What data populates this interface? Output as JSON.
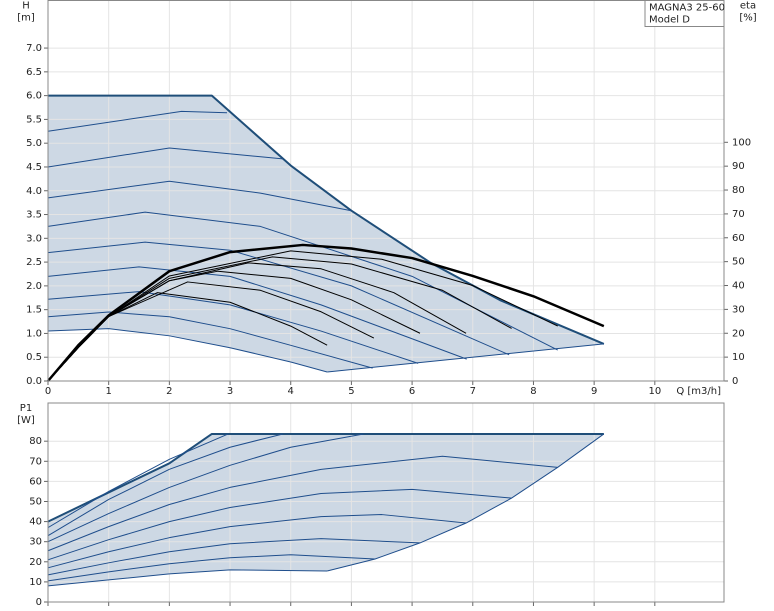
{
  "chart_data": [
    {
      "type": "line",
      "ylabel": [
        "H",
        "[m]"
      ],
      "y2label": [
        "eta",
        "[%]"
      ],
      "xlabel": "Q [m3/h]",
      "annotations": [
        "MAGNA3 25-60",
        "Model D"
      ],
      "xlim": [
        0,
        11.14
      ],
      "ylim": [
        0,
        8
      ],
      "y2lim": [
        0,
        159.4
      ],
      "xticks": [
        0,
        1,
        2,
        3,
        4,
        5,
        6,
        7,
        8,
        9,
        10
      ],
      "yticks": [
        {
          "value": 0,
          "label": "0.0"
        },
        0.5,
        {
          "value": 1,
          "label": "1.0"
        },
        1.5,
        {
          "value": 2,
          "label": "2.0"
        },
        2.5,
        {
          "value": 3,
          "label": "3.0"
        },
        3.5,
        {
          "value": 4,
          "label": "4.0"
        },
        4.5,
        {
          "value": 5,
          "label": "5.0"
        },
        5.5,
        {
          "value": 6,
          "label": "6.0"
        },
        6.5,
        {
          "value": 7,
          "label": "7.0"
        }
      ],
      "y2ticks": [
        0,
        10,
        20,
        30,
        40,
        50,
        60,
        70,
        80,
        90,
        100
      ],
      "show_xtick_labels": true,
      "grid": true,
      "region": {
        "color": "#cdd8e4",
        "x": [
          0,
          2.7,
          4,
          5,
          6.3,
          7.45,
          9.16,
          4.6,
          4,
          3,
          2,
          1,
          0
        ],
        "values": [
          6,
          6,
          4.53,
          3.58,
          2.49,
          1.7,
          0.78,
          0.19,
          0.4,
          0.7,
          0.95,
          1.1,
          1.05
        ]
      },
      "series": [
        {
          "color": "#1f4e79",
          "line_width": 2,
          "x": [
            0,
            2.7,
            4,
            5,
            6.3,
            7.45,
            9.16
          ],
          "values": [
            6,
            6,
            4.53,
            3.58,
            2.49,
            1.7,
            0.78
          ]
        },
        {
          "color": "#1f4e8c",
          "line_width": 1,
          "x": [
            4.6,
            9.16
          ],
          "values": [
            0.19,
            0.78
          ]
        },
        {
          "color": "#1f4e8c",
          "line_width": 1,
          "x": [
            0,
            1,
            2,
            3,
            4,
            4.6
          ],
          "values": [
            1.05,
            1.1,
            0.95,
            0.7,
            0.4,
            0.19
          ]
        },
        {
          "color": "#1f4e8c",
          "line_width": 1,
          "x": [
            0,
            1,
            2,
            3,
            4,
            5.35
          ],
          "values": [
            1.35,
            1.45,
            1.35,
            1.1,
            0.75,
            0.27
          ]
        },
        {
          "color": "#1f4e8c",
          "line_width": 1,
          "x": [
            0,
            1.5,
            3,
            4.5,
            6.1
          ],
          "values": [
            1.72,
            1.88,
            1.6,
            1.05,
            0.37
          ]
        },
        {
          "color": "#1f4e8c",
          "line_width": 1,
          "x": [
            0,
            1.5,
            3,
            4.5,
            6.9
          ],
          "values": [
            2.2,
            2.4,
            2.2,
            1.6,
            0.46
          ]
        },
        {
          "color": "#1f4e8c",
          "line_width": 1,
          "x": [
            0,
            1.6,
            3,
            5,
            7.6
          ],
          "values": [
            2.7,
            2.92,
            2.75,
            2.0,
            0.55
          ]
        },
        {
          "color": "#1f4e8c",
          "line_width": 1,
          "x": [
            0,
            1.6,
            3.5,
            6,
            8.4
          ],
          "values": [
            3.25,
            3.55,
            3.25,
            2.2,
            0.65
          ]
        },
        {
          "color": "#1f4e8c",
          "line_width": 1,
          "x": [
            0,
            2,
            3.5,
            5
          ],
          "values": [
            3.85,
            4.2,
            3.95,
            3.58
          ]
        },
        {
          "color": "#1f4e8c",
          "line_width": 1,
          "x": [
            0,
            2,
            3.87
          ],
          "values": [
            4.5,
            4.9,
            4.67
          ]
        },
        {
          "color": "#1f4e8c",
          "line_width": 1,
          "x": [
            0,
            2.2,
            2.95
          ],
          "values": [
            5.25,
            5.67,
            5.64
          ]
        },
        {
          "color": "#000000",
          "line_width": 2.5,
          "axis": "y2",
          "x": [
            0,
            0.5,
            1,
            2,
            3,
            4.2,
            5,
            6,
            7,
            8,
            9.16
          ],
          "values": [
            0,
            15,
            27.5,
            46,
            54,
            57,
            55.5,
            51.5,
            44,
            35.5,
            23
          ]
        },
        {
          "color": "#000000",
          "line_width": 1,
          "axis": "y2",
          "x": [
            0,
            0.5,
            1,
            1.8,
            3,
            4,
            4.6
          ],
          "values": [
            0,
            14,
            27,
            37,
            33,
            23,
            15
          ]
        },
        {
          "color": "#000000",
          "line_width": 1,
          "axis": "y2",
          "x": [
            0,
            0.5,
            1,
            2.3,
            3.5,
            4.5,
            5.37
          ],
          "values": [
            0,
            14,
            27,
            41.5,
            38,
            29,
            18
          ]
        },
        {
          "color": "#000000",
          "line_width": 1,
          "axis": "y2",
          "x": [
            0,
            0.5,
            1,
            2,
            2.8,
            4,
            5,
            6.13
          ],
          "values": [
            0,
            14,
            27,
            42,
            46,
            43,
            34,
            20
          ]
        },
        {
          "color": "#000000",
          "line_width": 1,
          "axis": "y2",
          "x": [
            0,
            0.5,
            1,
            2,
            3.3,
            4.5,
            5.7,
            6.89
          ],
          "values": [
            0,
            14,
            27,
            42,
            49.5,
            47,
            37,
            20
          ]
        },
        {
          "color": "#000000",
          "line_width": 1,
          "axis": "y2",
          "x": [
            0,
            0.5,
            1,
            2,
            3.7,
            5,
            6.5,
            7.64
          ],
          "values": [
            0,
            14,
            27,
            43,
            52,
            49,
            38,
            22
          ]
        },
        {
          "color": "#000000",
          "line_width": 1,
          "axis": "y2",
          "x": [
            0,
            0.5,
            1,
            2,
            4,
            5.5,
            7,
            8.4
          ],
          "values": [
            0,
            14,
            27,
            44,
            54.5,
            51,
            40,
            23
          ]
        }
      ]
    },
    {
      "type": "line",
      "ylabel": [
        "P1",
        "[W]"
      ],
      "xlim": [
        0,
        11.14
      ],
      "ylim": [
        0,
        99
      ],
      "xticks": [
        0,
        1,
        2,
        3,
        4,
        5,
        6,
        7,
        8,
        9,
        10
      ],
      "yticks": [
        0,
        10,
        20,
        30,
        40,
        50,
        60,
        70,
        80
      ],
      "show_xtick_labels": false,
      "grid": true,
      "region": {
        "color": "#cdd8e4",
        "x": [
          0,
          1,
          2,
          2.7,
          9.16,
          8.4,
          7.64,
          6.89,
          6.13,
          5.39,
          4.6,
          3,
          2,
          1,
          0
        ],
        "values": [
          40,
          54.5,
          69,
          83.6,
          83.6,
          67,
          51.7,
          39.3,
          29.4,
          21.4,
          15.4,
          16,
          14,
          11,
          8
        ]
      },
      "series": [
        {
          "color": "#1f4e79",
          "line_width": 2,
          "x": [
            0,
            1,
            2,
            2.7,
            9.16
          ],
          "values": [
            40,
            54.5,
            69,
            83.6,
            83.6
          ]
        },
        {
          "color": "#1f4e8c",
          "line_width": 1,
          "x": [
            9.16,
            8.4,
            7.64,
            6.89,
            6.13,
            5.39,
            4.6
          ],
          "values": [
            83.6,
            67,
            51.7,
            39.3,
            29.4,
            21.4,
            15.4
          ]
        },
        {
          "color": "#1f4e8c",
          "line_width": 1,
          "x": [
            0,
            1,
            2,
            3,
            4.6
          ],
          "values": [
            8,
            11,
            14,
            16,
            15.4
          ]
        },
        {
          "color": "#1f4e8c",
          "line_width": 1,
          "x": [
            0,
            1,
            2,
            3,
            4,
            5.39
          ],
          "values": [
            10.5,
            15,
            19,
            22,
            23.5,
            21.4
          ]
        },
        {
          "color": "#1f4e8c",
          "line_width": 1,
          "x": [
            0,
            1,
            2,
            3,
            4.5,
            6.13
          ],
          "values": [
            13.5,
            19.5,
            25,
            29,
            31.5,
            29.4
          ]
        },
        {
          "color": "#1f4e8c",
          "line_width": 1,
          "x": [
            0,
            1,
            2,
            3,
            4.5,
            5.5,
            6.89
          ],
          "values": [
            17,
            25,
            32,
            37.5,
            42.5,
            43.5,
            39.3
          ]
        },
        {
          "color": "#1f4e8c",
          "line_width": 1,
          "x": [
            0,
            1,
            2,
            3,
            4.5,
            6,
            7.64
          ],
          "values": [
            21,
            31,
            40,
            47,
            54,
            56,
            51.7
          ]
        },
        {
          "color": "#1f4e8c",
          "line_width": 1,
          "x": [
            0,
            1,
            2,
            3,
            4.5,
            6.5,
            8.4
          ],
          "values": [
            25.5,
            37.5,
            48.5,
            57,
            66,
            72.5,
            67
          ]
        },
        {
          "color": "#1f4e8c",
          "line_width": 1,
          "x": [
            0,
            1,
            2,
            3,
            4,
            5.2
          ],
          "values": [
            30,
            44,
            57,
            68,
            77,
            83.6
          ]
        },
        {
          "color": "#1f4e8c",
          "line_width": 1,
          "x": [
            0,
            1,
            2,
            3,
            3.87
          ],
          "values": [
            33,
            51,
            66,
            77,
            83.6
          ]
        },
        {
          "color": "#1f4e8c",
          "line_width": 1,
          "x": [
            0,
            1,
            2,
            2.97
          ],
          "values": [
            37,
            55,
            71,
            83.6
          ]
        }
      ]
    }
  ]
}
